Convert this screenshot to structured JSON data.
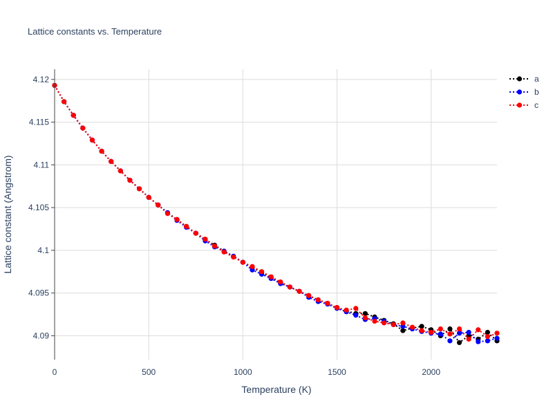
{
  "chart_data": {
    "type": "line",
    "title": "Lattice constants vs. Temperature",
    "xlabel": "Temperature (K)",
    "ylabel": "Lattice constant (Angstrom)",
    "xlim": [
      0,
      2350
    ],
    "ylim": [
      4.0872,
      4.1212
    ],
    "xticks": [
      0,
      500,
      1000,
      1500,
      2000
    ],
    "yticks": [
      4.09,
      4.095,
      4.1,
      4.105,
      4.11,
      4.115,
      4.12
    ],
    "ytick_labels": [
      "4.09",
      "4.095",
      "4.1",
      "4.105",
      "4.11",
      "4.115",
      "4.12"
    ],
    "grid": true,
    "legend_position": "top-right",
    "line_style": "dotted",
    "x": [
      0,
      50,
      100,
      150,
      200,
      250,
      300,
      350,
      400,
      450,
      500,
      550,
      600,
      650,
      700,
      750,
      800,
      850,
      900,
      950,
      1000,
      1050,
      1100,
      1150,
      1200,
      1250,
      1300,
      1350,
      1400,
      1450,
      1500,
      1550,
      1600,
      1650,
      1700,
      1750,
      1800,
      1850,
      1900,
      1950,
      2000,
      2050,
      2100,
      2150,
      2200,
      2250,
      2300,
      2350
    ],
    "series": [
      {
        "name": "a",
        "color": "#000000",
        "values": [
          4.1193,
          4.1174,
          4.1158,
          4.1143,
          4.1129,
          4.1116,
          4.1104,
          4.1093,
          4.1082,
          4.1072,
          4.1062,
          4.1053,
          4.1044,
          4.1036,
          4.1028,
          4.102,
          4.1013,
          4.1006,
          4.0999,
          4.0993,
          4.0986,
          4.098,
          4.0974,
          4.0968,
          4.0962,
          4.0957,
          4.0952,
          4.0947,
          4.0942,
          4.0938,
          4.0933,
          4.0929,
          4.0926,
          4.0926,
          4.0922,
          4.0918,
          4.0914,
          4.0906,
          4.0909,
          4.0911,
          4.0907,
          4.09,
          4.0908,
          4.0892,
          4.09,
          4.0896,
          4.0904,
          4.0894
        ]
      },
      {
        "name": "b",
        "color": "#0000ff",
        "values": [
          4.1193,
          4.1174,
          4.1158,
          4.1143,
          4.1129,
          4.1116,
          4.1104,
          4.1093,
          4.1082,
          4.1072,
          4.1062,
          4.1053,
          4.1044,
          4.1035,
          4.1027,
          4.102,
          4.1011,
          4.1004,
          4.0999,
          4.0993,
          4.0986,
          4.0977,
          4.0972,
          4.0967,
          4.0961,
          4.0957,
          4.0952,
          4.0945,
          4.094,
          4.0937,
          4.0932,
          4.0928,
          4.0924,
          4.0919,
          4.092,
          4.0917,
          4.0913,
          4.0911,
          4.0908,
          4.0905,
          4.0903,
          4.0902,
          4.0894,
          4.0903,
          4.0904,
          4.0893,
          4.0894,
          4.0897
        ]
      },
      {
        "name": "c",
        "color": "#ff0000",
        "values": [
          4.1193,
          4.1174,
          4.1158,
          4.1143,
          4.1129,
          4.1116,
          4.1104,
          4.1093,
          4.1082,
          4.1072,
          4.1062,
          4.1053,
          4.1043,
          4.1036,
          4.1028,
          4.102,
          4.1013,
          4.1005,
          4.0998,
          4.0992,
          4.0986,
          4.0981,
          4.0975,
          4.0969,
          4.0963,
          4.0957,
          4.0952,
          4.0947,
          4.0942,
          4.0938,
          4.0933,
          4.093,
          4.0932,
          4.0921,
          4.0917,
          4.0915,
          4.0913,
          4.0915,
          4.091,
          4.0906,
          4.0904,
          4.0908,
          4.0902,
          4.0908,
          4.0896,
          4.0907,
          4.0899,
          4.0903
        ]
      }
    ]
  }
}
